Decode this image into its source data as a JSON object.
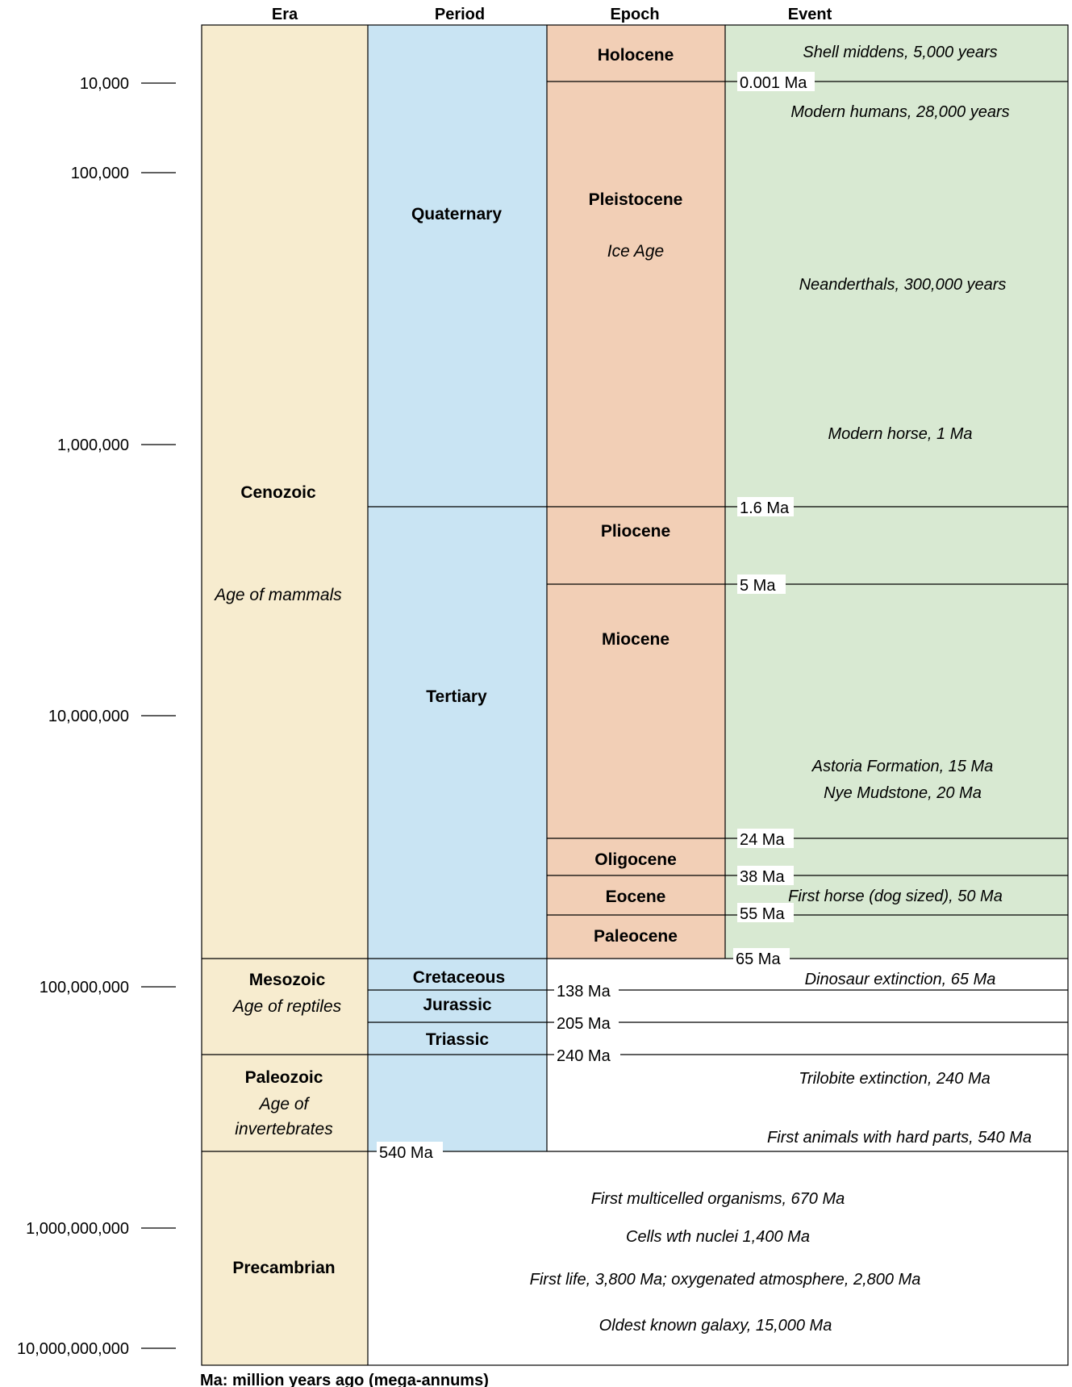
{
  "headers": {
    "era": "Era",
    "period": "Period",
    "epoch": "Epoch",
    "event": "Event"
  },
  "axis_labels": [
    "10,000",
    "100,000",
    "1,000,000",
    "10,000,000",
    "100,000,000",
    "1,000,000,000",
    "10,000,000,000"
  ],
  "eras": [
    {
      "name": "Cenozoic",
      "subtitle": "Age of mammals",
      "color": "#f7eccf"
    },
    {
      "name": "Mesozoic",
      "subtitle": "Age of reptiles",
      "color": "#f7eccf"
    },
    {
      "name": "Paleozoic",
      "subtitle": "Age of invertebrates",
      "subtitle_lines": [
        "Age of",
        "invertebrates"
      ],
      "color": "#f7eccf"
    },
    {
      "name": "Precambrian",
      "subtitle": "",
      "color": "#f7eccf"
    }
  ],
  "periods": [
    "Quaternary",
    "Tertiary",
    "Cretaceous",
    "Jurassic",
    "Triassic"
  ],
  "period_color": "#c9e4f3",
  "epochs": [
    {
      "name": "Holocene",
      "subtitle": ""
    },
    {
      "name": "Pleistocene",
      "subtitle": "Ice Age"
    },
    {
      "name": "Pliocene",
      "subtitle": ""
    },
    {
      "name": "Miocene",
      "subtitle": ""
    },
    {
      "name": "Oligocene",
      "subtitle": ""
    },
    {
      "name": "Eocene",
      "subtitle": ""
    },
    {
      "name": "Paleocene",
      "subtitle": ""
    }
  ],
  "epoch_color": "#f2cfb6",
  "event_color": "#d8e9d2",
  "boundaries": [
    "0.001 Ma",
    "1.6 Ma",
    "5 Ma",
    "24 Ma",
    "38 Ma",
    "55 Ma",
    "65 Ma",
    "138 Ma",
    "205 Ma",
    "240 Ma",
    "540 Ma"
  ],
  "events": [
    "Shell middens, 5,000 years",
    "Modern humans, 28,000 years",
    "Neanderthals, 300,000 years",
    "Modern horse, 1 Ma",
    "Astoria Formation, 15 Ma",
    "Nye Mudstone, 20 Ma",
    "First horse (dog sized), 50 Ma",
    "Dinosaur extinction, 65 Ma",
    "Trilobite extinction, 240 Ma",
    "First animals with hard parts, 540 Ma",
    "First multicelled organisms, 670 Ma",
    "Cells wth nuclei 1,400 Ma",
    "First life, 3,800 Ma; oxygenated atmosphere, 2,800 Ma",
    "Oldest known galaxy, 15,000 Ma"
  ],
  "footnote": "Ma: million years ago (mega-annums)"
}
